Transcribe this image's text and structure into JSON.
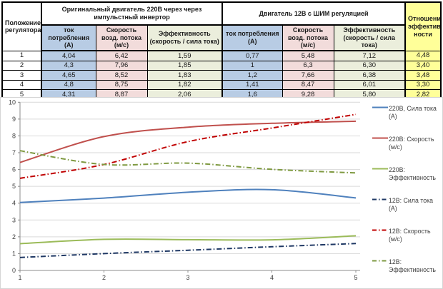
{
  "colors": {
    "blue": "#B8CCE4",
    "pink": "#F2DCDB",
    "olive": "#EBEEDC",
    "yellow": "#FFFF99",
    "grid": "#D9D9D9",
    "axis": "#8C8C8C",
    "tick_label": "#3F3F3F"
  },
  "table": {
    "corner": "Положение регулятора",
    "group_220_title": "Оригинальный двигатель 220В через через импульстный инвертор",
    "group_12_title": "Двигатель 12В с ШИМ регуляцией",
    "ratio_title": "Отношение эффектив-ности",
    "sub": {
      "current": "ток потребления (А)",
      "speed": "Скорость возд. потока (м/с)",
      "eff": "Эффективность (скорость / сила тока)"
    },
    "rows": [
      [
        "1",
        "4,04",
        "6,42",
        "1,59",
        "0,77",
        "5,48",
        "7,12",
        "4,48"
      ],
      [
        "2",
        "4,3",
        "7,96",
        "1,85",
        "1",
        "6,3",
        "6,30",
        "3,40"
      ],
      [
        "3",
        "4,65",
        "8,52",
        "1,83",
        "1,2",
        "7,66",
        "6,38",
        "3,48"
      ],
      [
        "4",
        "4,8",
        "8,75",
        "1,82",
        "1,41",
        "8,47",
        "6,01",
        "3,30"
      ],
      [
        "5",
        "4,31",
        "8,87",
        "2,06",
        "1,6",
        "9,28",
        "5,80",
        "2,82"
      ]
    ]
  },
  "chart_data": {
    "type": "line",
    "smooth": true,
    "x": [
      1,
      2,
      3,
      4,
      5
    ],
    "series": [
      {
        "name": "220В, Сила тока (А)",
        "values": [
          4.04,
          4.3,
          4.65,
          4.8,
          4.31
        ],
        "color": "#4F81BD",
        "style": "solid"
      },
      {
        "name": "220В: Скорость (м/с)",
        "values": [
          6.42,
          7.96,
          8.52,
          8.75,
          8.87
        ],
        "color": "#C0504D",
        "style": "solid"
      },
      {
        "name": "220В: Эффективность",
        "values": [
          1.59,
          1.85,
          1.83,
          1.82,
          2.06
        ],
        "color": "#9BBB59",
        "style": "solid"
      },
      {
        "name": "12В: Сила тока (А)",
        "values": [
          0.77,
          1,
          1.2,
          1.41,
          1.6
        ],
        "color": "#1F3864",
        "style": "dashdot"
      },
      {
        "name": "12В: Скорость (м/с)",
        "values": [
          5.48,
          6.3,
          7.66,
          8.47,
          9.28
        ],
        "color": "#C00000",
        "style": "dashdot"
      },
      {
        "name": "12В: Эффективность",
        "values": [
          7.12,
          6.3,
          6.38,
          6.01,
          5.8
        ],
        "color": "#7E9940",
        "style": "dashdot"
      }
    ],
    "title": "",
    "xlabel": "",
    "ylabel": "",
    "ylim": [
      0,
      10
    ],
    "yticks": [
      0,
      1,
      2,
      3,
      4,
      5,
      6,
      7,
      8,
      9,
      10
    ],
    "xticks": [
      1,
      2,
      3,
      4,
      5
    ],
    "grid": true,
    "legend_position": "right"
  }
}
